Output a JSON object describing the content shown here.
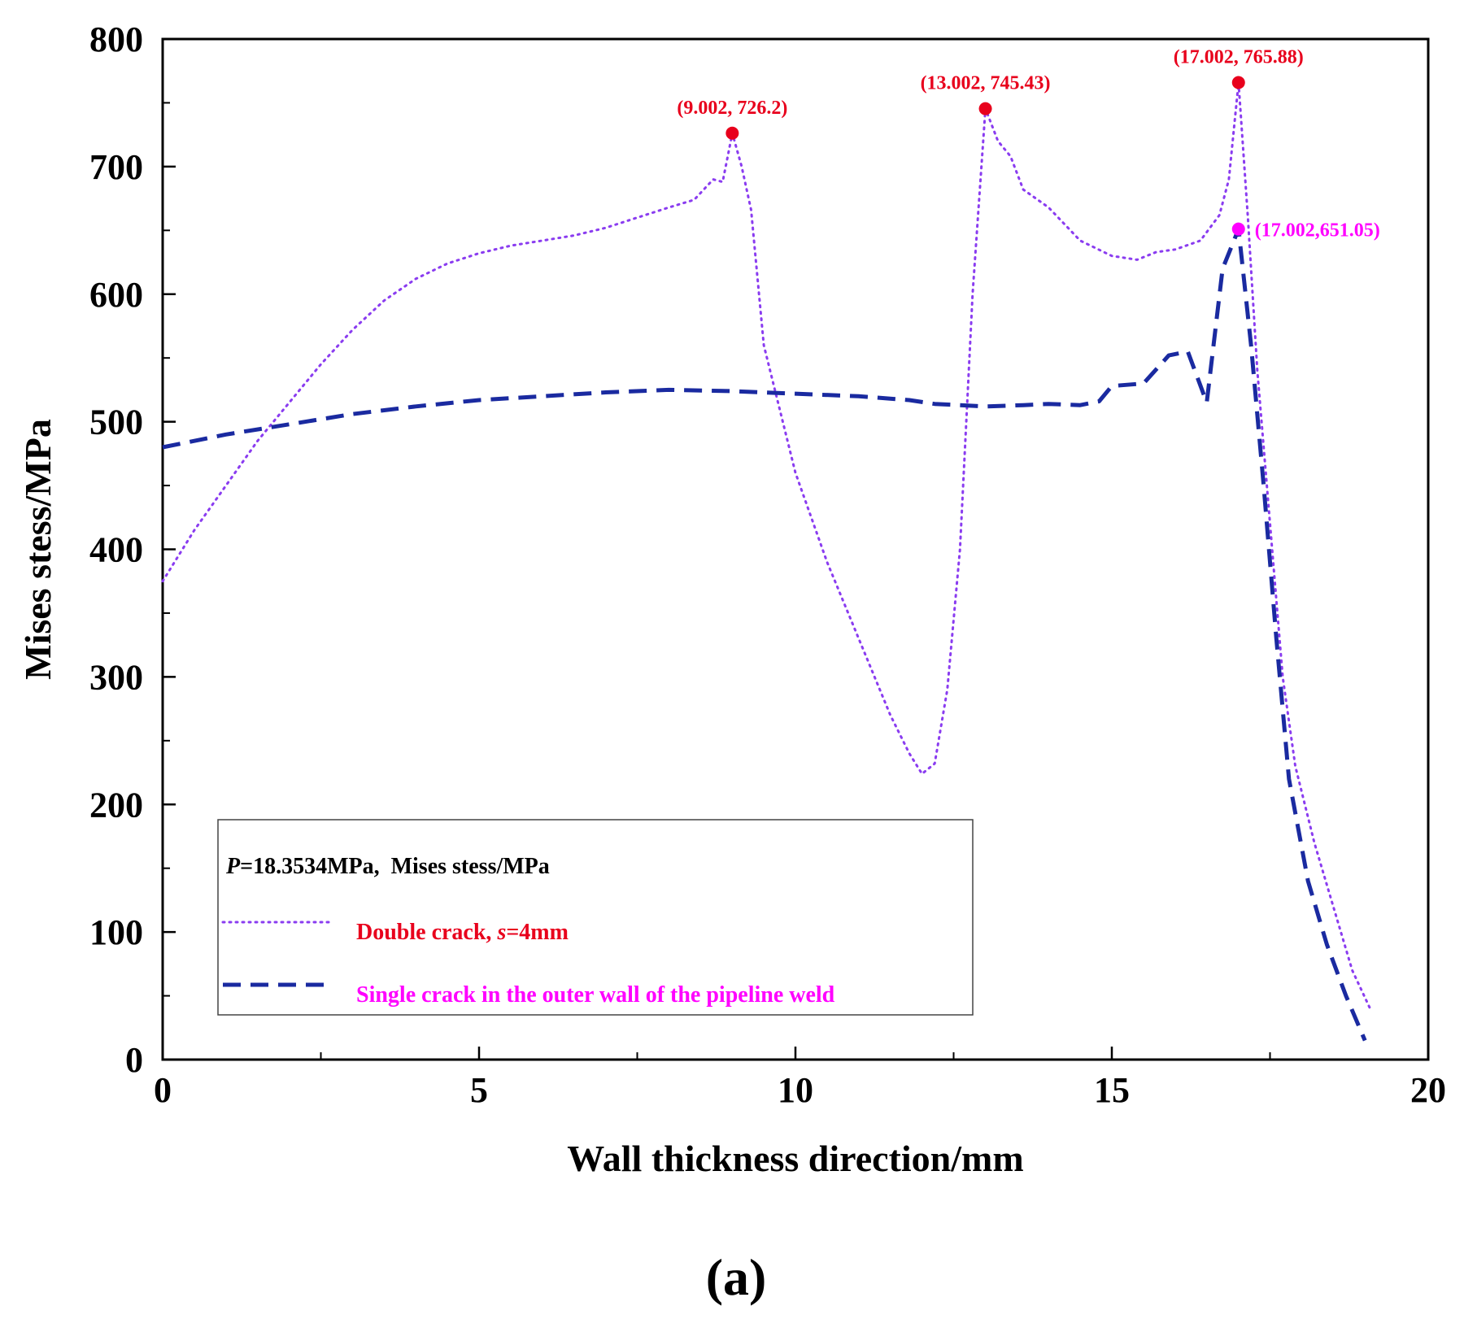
{
  "chart_data": {
    "type": "line",
    "xlabel": "Wall thickness direction/mm",
    "ylabel": "Mises stess/MPa",
    "xlim": [
      0,
      20
    ],
    "ylim": [
      0,
      800
    ],
    "x_ticks": [
      "0",
      "5",
      "10",
      "15",
      "20"
    ],
    "y_ticks": [
      "0",
      "100",
      "200",
      "300",
      "400",
      "500",
      "600",
      "700",
      "800"
    ],
    "grid": false,
    "legend": {
      "position": "bottom-left",
      "title_prefix": "P",
      "title_rest": "=18.3534MPa,  Mises stess/MPa"
    },
    "series": [
      {
        "name": "Double crack, s=4mm",
        "label_prefix": "Double crack, ",
        "label_italic": "s",
        "label_suffix": "=4mm",
        "style": "dotted",
        "color": "#8a3cf0",
        "label_color": "#e8001c",
        "points": [
          [
            0,
            375
          ],
          [
            0.5,
            415
          ],
          [
            1,
            450
          ],
          [
            1.5,
            485
          ],
          [
            2,
            515
          ],
          [
            2.5,
            545
          ],
          [
            3,
            572
          ],
          [
            3.5,
            595
          ],
          [
            4,
            612
          ],
          [
            4.5,
            624
          ],
          [
            5,
            632
          ],
          [
            5.5,
            638
          ],
          [
            6,
            642
          ],
          [
            6.5,
            646
          ],
          [
            7,
            652
          ],
          [
            7.5,
            660
          ],
          [
            8,
            668
          ],
          [
            8.4,
            674
          ],
          [
            8.7,
            690
          ],
          [
            8.85,
            688
          ],
          [
            9.002,
            726.2
          ],
          [
            9.15,
            700
          ],
          [
            9.3,
            666
          ],
          [
            9.5,
            560
          ],
          [
            10,
            460
          ],
          [
            10.5,
            390
          ],
          [
            11,
            330
          ],
          [
            11.5,
            270
          ],
          [
            11.8,
            240
          ],
          [
            12,
            224
          ],
          [
            12.2,
            232
          ],
          [
            12.4,
            290
          ],
          [
            12.6,
            400
          ],
          [
            12.8,
            600
          ],
          [
            13.002,
            745.43
          ],
          [
            13.2,
            720
          ],
          [
            13.4,
            708
          ],
          [
            13.6,
            682
          ],
          [
            14,
            668
          ],
          [
            14.5,
            642
          ],
          [
            15,
            630
          ],
          [
            15.4,
            627
          ],
          [
            15.7,
            633
          ],
          [
            16,
            635
          ],
          [
            16.4,
            642
          ],
          [
            16.7,
            662
          ],
          [
            16.85,
            690
          ],
          [
            17.002,
            765.88
          ],
          [
            17.15,
            660
          ],
          [
            17.3,
            540
          ],
          [
            17.5,
            420
          ],
          [
            17.7,
            300
          ],
          [
            17.9,
            230
          ],
          [
            18.2,
            170
          ],
          [
            18.5,
            120
          ],
          [
            18.8,
            70
          ],
          [
            19.1,
            38
          ]
        ]
      },
      {
        "name": "Single crack in the outer wall of the pipeline weld",
        "style": "dashed",
        "color": "#1a2aa0",
        "label_color": "#ff00ff",
        "points": [
          [
            0,
            480
          ],
          [
            1,
            490
          ],
          [
            2,
            498
          ],
          [
            3,
            506
          ],
          [
            4,
            512
          ],
          [
            5,
            517
          ],
          [
            6,
            520
          ],
          [
            7,
            523
          ],
          [
            8,
            525
          ],
          [
            9,
            524
          ],
          [
            10,
            522
          ],
          [
            11,
            520
          ],
          [
            11.8,
            517
          ],
          [
            12.2,
            514
          ],
          [
            13,
            512
          ],
          [
            13.6,
            513
          ],
          [
            14,
            514
          ],
          [
            14.5,
            513
          ],
          [
            14.8,
            516
          ],
          [
            15.0,
            528
          ],
          [
            15.5,
            530
          ],
          [
            15.9,
            552
          ],
          [
            16.2,
            555
          ],
          [
            16.5,
            515
          ],
          [
            16.75,
            620
          ],
          [
            17.002,
            651.05
          ],
          [
            17.2,
            560
          ],
          [
            17.4,
            450
          ],
          [
            17.6,
            330
          ],
          [
            17.8,
            220
          ],
          [
            18.1,
            140
          ],
          [
            18.4,
            90
          ],
          [
            18.7,
            50
          ],
          [
            19.0,
            15
          ]
        ]
      }
    ],
    "annotations": [
      {
        "label": "(9.002, 726.2)",
        "x": 9.002,
        "y": 726.2,
        "color": "#e8001c"
      },
      {
        "label": "(13.002, 745.43)",
        "x": 13.002,
        "y": 745.43,
        "color": "#e8001c"
      },
      {
        "label": "(17.002, 765.88)",
        "x": 17.002,
        "y": 765.88,
        "color": "#e8001c"
      },
      {
        "label": "(17.002,651.05)",
        "x": 17.002,
        "y": 651.05,
        "color": "#ff00ff"
      }
    ],
    "panel_label": "(a)"
  }
}
